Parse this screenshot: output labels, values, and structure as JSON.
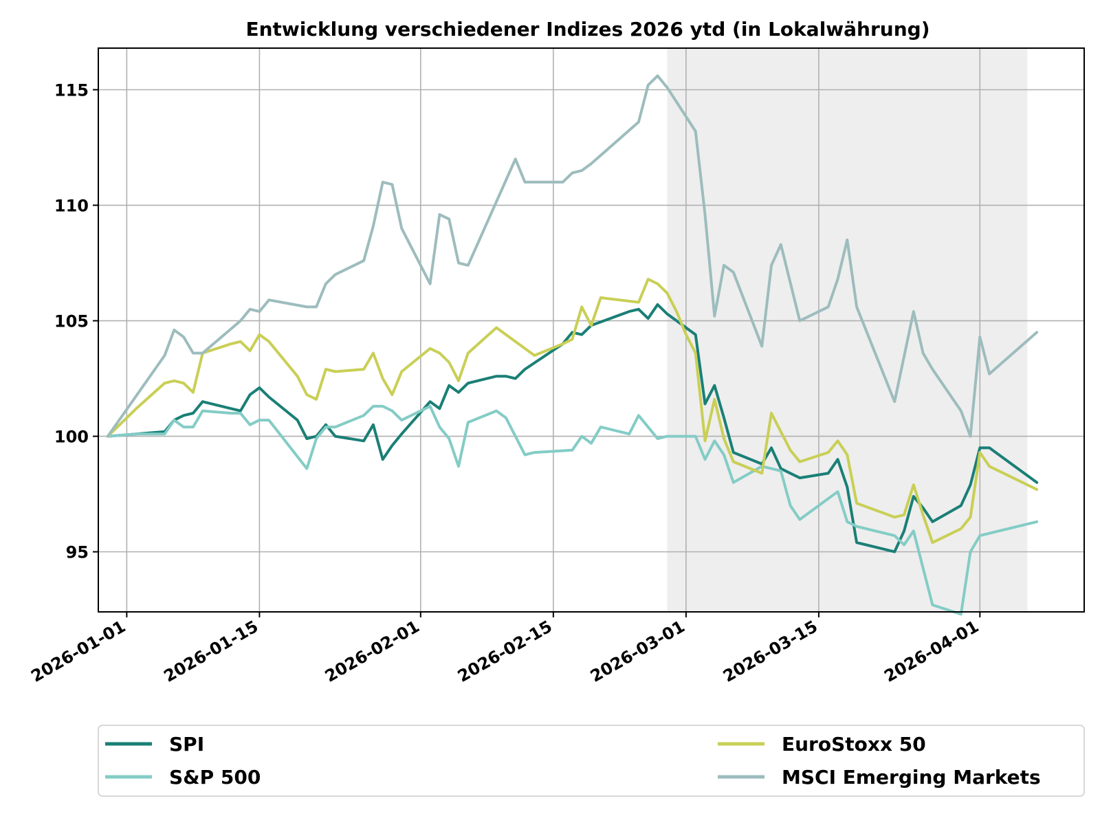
{
  "chart_data": {
    "type": "line",
    "title": "Entwicklung verschiedener Indizes 2026 ytd (in Lokalwährung)",
    "xlabel": "",
    "ylabel": "",
    "x_start": "2025-12-30",
    "xlim": [
      "2025-12-29",
      "2026-04-12"
    ],
    "ylim": [
      92.4,
      116.8
    ],
    "yticks": [
      95,
      100,
      105,
      110,
      115
    ],
    "ytick_labels": [
      "95",
      "100",
      "105",
      "110",
      "115"
    ],
    "xticks": [
      "2026-01-01",
      "2026-01-15",
      "2026-02-01",
      "2026-02-15",
      "2026-03-01",
      "2026-03-15",
      "2026-04-01"
    ],
    "xtick_labels": [
      "2026-01-01",
      "2026-01-15",
      "2026-02-01",
      "2026-02-15",
      "2026-03-01",
      "2026-03-15",
      "2026-04-01"
    ],
    "grid": true,
    "legend_placement": "below",
    "shaded_region": {
      "x_start": "2026-02-27",
      "x_end": "2026-04-06",
      "color": "#eeeeee"
    },
    "series": [
      {
        "name": "SPI",
        "color": "#1a7f76",
        "points": [
          [
            "2025-12-30",
            100.0
          ],
          [
            "2026-01-02",
            100.1
          ],
          [
            "2026-01-05",
            100.2
          ],
          [
            "2026-01-06",
            100.7
          ],
          [
            "2026-01-07",
            100.9
          ],
          [
            "2026-01-08",
            101.0
          ],
          [
            "2026-01-09",
            101.5
          ],
          [
            "2026-01-12",
            101.2
          ],
          [
            "2026-01-13",
            101.1
          ],
          [
            "2026-01-14",
            101.8
          ],
          [
            "2026-01-15",
            102.1
          ],
          [
            "2026-01-16",
            101.7
          ],
          [
            "2026-01-19",
            100.7
          ],
          [
            "2026-01-20",
            99.9
          ],
          [
            "2026-01-21",
            100.0
          ],
          [
            "2026-01-22",
            100.5
          ],
          [
            "2026-01-23",
            100.0
          ],
          [
            "2026-01-26",
            99.8
          ],
          [
            "2026-01-27",
            100.5
          ],
          [
            "2026-01-28",
            99.0
          ],
          [
            "2026-01-29",
            99.6
          ],
          [
            "2026-01-30",
            100.1
          ],
          [
            "2026-02-02",
            101.5
          ],
          [
            "2026-02-03",
            101.2
          ],
          [
            "2026-02-04",
            102.2
          ],
          [
            "2026-02-05",
            101.9
          ],
          [
            "2026-02-06",
            102.3
          ],
          [
            "2026-02-09",
            102.6
          ],
          [
            "2026-02-10",
            102.6
          ],
          [
            "2026-02-11",
            102.5
          ],
          [
            "2026-02-12",
            102.9
          ],
          [
            "2026-02-16",
            104.0
          ],
          [
            "2026-02-17",
            104.5
          ],
          [
            "2026-02-18",
            104.4
          ],
          [
            "2026-02-19",
            104.8
          ],
          [
            "2026-02-23",
            105.4
          ],
          [
            "2026-02-24",
            105.5
          ],
          [
            "2026-02-25",
            105.1
          ],
          [
            "2026-02-26",
            105.7
          ],
          [
            "2026-02-27",
            105.3
          ],
          [
            "2026-03-02",
            104.4
          ],
          [
            "2026-03-03",
            101.4
          ],
          [
            "2026-03-04",
            102.2
          ],
          [
            "2026-03-05",
            100.8
          ],
          [
            "2026-03-06",
            99.3
          ],
          [
            "2026-03-09",
            98.8
          ],
          [
            "2026-03-10",
            99.5
          ],
          [
            "2026-03-11",
            98.6
          ],
          [
            "2026-03-12",
            98.4
          ],
          [
            "2026-03-13",
            98.2
          ],
          [
            "2026-03-16",
            98.4
          ],
          [
            "2026-03-17",
            99.0
          ],
          [
            "2026-03-18",
            97.8
          ],
          [
            "2026-03-19",
            95.4
          ],
          [
            "2026-03-20",
            95.3
          ],
          [
            "2026-03-23",
            95.0
          ],
          [
            "2026-03-24",
            95.9
          ],
          [
            "2026-03-25",
            97.4
          ],
          [
            "2026-03-26",
            96.9
          ],
          [
            "2026-03-27",
            96.3
          ],
          [
            "2026-03-30",
            97.0
          ],
          [
            "2026-03-31",
            97.9
          ],
          [
            "2026-04-01",
            99.5
          ],
          [
            "2026-04-02",
            99.5
          ],
          [
            "2026-04-07",
            98.0
          ]
        ]
      },
      {
        "name": "S&P 500",
        "color": "#84ccc6",
        "points": [
          [
            "2025-12-30",
            100.0
          ],
          [
            "2026-01-02",
            100.1
          ],
          [
            "2026-01-05",
            100.1
          ],
          [
            "2026-01-06",
            100.7
          ],
          [
            "2026-01-07",
            100.4
          ],
          [
            "2026-01-08",
            100.4
          ],
          [
            "2026-01-09",
            101.1
          ],
          [
            "2026-01-12",
            101.0
          ],
          [
            "2026-01-13",
            101.0
          ],
          [
            "2026-01-14",
            100.5
          ],
          [
            "2026-01-15",
            100.7
          ],
          [
            "2026-01-16",
            100.7
          ],
          [
            "2026-01-20",
            98.6
          ],
          [
            "2026-01-21",
            99.9
          ],
          [
            "2026-01-22",
            100.4
          ],
          [
            "2026-01-23",
            100.4
          ],
          [
            "2026-01-26",
            100.9
          ],
          [
            "2026-01-27",
            101.3
          ],
          [
            "2026-01-28",
            101.3
          ],
          [
            "2026-01-29",
            101.1
          ],
          [
            "2026-01-30",
            100.7
          ],
          [
            "2026-02-02",
            101.3
          ],
          [
            "2026-02-03",
            100.4
          ],
          [
            "2026-02-04",
            99.9
          ],
          [
            "2026-02-05",
            98.7
          ],
          [
            "2026-02-06",
            100.6
          ],
          [
            "2026-02-09",
            101.1
          ],
          [
            "2026-02-10",
            100.8
          ],
          [
            "2026-02-11",
            100.0
          ],
          [
            "2026-02-12",
            99.2
          ],
          [
            "2026-02-13",
            99.3
          ],
          [
            "2026-02-17",
            99.4
          ],
          [
            "2026-02-18",
            100.0
          ],
          [
            "2026-02-19",
            99.7
          ],
          [
            "2026-02-20",
            100.4
          ],
          [
            "2026-02-23",
            100.1
          ],
          [
            "2026-02-24",
            100.9
          ],
          [
            "2026-02-25",
            100.4
          ],
          [
            "2026-02-26",
            99.9
          ],
          [
            "2026-02-27",
            100.0
          ],
          [
            "2026-03-02",
            100.0
          ],
          [
            "2026-03-03",
            99.0
          ],
          [
            "2026-03-04",
            99.8
          ],
          [
            "2026-03-05",
            99.2
          ],
          [
            "2026-03-06",
            98.0
          ],
          [
            "2026-03-09",
            98.7
          ],
          [
            "2026-03-10",
            98.6
          ],
          [
            "2026-03-11",
            98.5
          ],
          [
            "2026-03-12",
            97.0
          ],
          [
            "2026-03-13",
            96.4
          ],
          [
            "2026-03-16",
            97.3
          ],
          [
            "2026-03-17",
            97.6
          ],
          [
            "2026-03-18",
            96.3
          ],
          [
            "2026-03-19",
            96.1
          ],
          [
            "2026-03-23",
            95.7
          ],
          [
            "2026-03-24",
            95.3
          ],
          [
            "2026-03-25",
            95.9
          ],
          [
            "2026-03-26",
            94.3
          ],
          [
            "2026-03-27",
            92.7
          ],
          [
            "2026-03-30",
            92.3
          ],
          [
            "2026-03-31",
            95.0
          ],
          [
            "2026-04-01",
            95.7
          ],
          [
            "2026-04-07",
            96.3
          ]
        ]
      },
      {
        "name": "EuroStoxx 50",
        "color": "#c9cf55",
        "points": [
          [
            "2025-12-30",
            100.0
          ],
          [
            "2026-01-02",
            101.2
          ],
          [
            "2026-01-05",
            102.3
          ],
          [
            "2026-01-06",
            102.4
          ],
          [
            "2026-01-07",
            102.3
          ],
          [
            "2026-01-08",
            101.9
          ],
          [
            "2026-01-09",
            103.6
          ],
          [
            "2026-01-12",
            104.0
          ],
          [
            "2026-01-13",
            104.1
          ],
          [
            "2026-01-14",
            103.7
          ],
          [
            "2026-01-15",
            104.4
          ],
          [
            "2026-01-16",
            104.1
          ],
          [
            "2026-01-19",
            102.6
          ],
          [
            "2026-01-20",
            101.8
          ],
          [
            "2026-01-21",
            101.6
          ],
          [
            "2026-01-22",
            102.9
          ],
          [
            "2026-01-23",
            102.8
          ],
          [
            "2026-01-26",
            102.9
          ],
          [
            "2026-01-27",
            103.6
          ],
          [
            "2026-01-28",
            102.5
          ],
          [
            "2026-01-29",
            101.8
          ],
          [
            "2026-01-30",
            102.8
          ],
          [
            "2026-02-02",
            103.8
          ],
          [
            "2026-02-03",
            103.6
          ],
          [
            "2026-02-04",
            103.2
          ],
          [
            "2026-02-05",
            102.4
          ],
          [
            "2026-02-06",
            103.6
          ],
          [
            "2026-02-09",
            104.7
          ],
          [
            "2026-02-10",
            104.4
          ],
          [
            "2026-02-13",
            103.5
          ],
          [
            "2026-02-16",
            104.0
          ],
          [
            "2026-02-17",
            104.2
          ],
          [
            "2026-02-18",
            105.6
          ],
          [
            "2026-02-19",
            104.8
          ],
          [
            "2026-02-20",
            106.0
          ],
          [
            "2026-02-24",
            105.8
          ],
          [
            "2026-02-25",
            106.8
          ],
          [
            "2026-02-26",
            106.6
          ],
          [
            "2026-02-27",
            106.2
          ],
          [
            "2026-02-28",
            105.4
          ],
          [
            "2026-03-01",
            104.4
          ],
          [
            "2026-03-02",
            103.6
          ],
          [
            "2026-03-03",
            99.8
          ],
          [
            "2026-03-04",
            101.6
          ],
          [
            "2026-03-05",
            99.9
          ],
          [
            "2026-03-06",
            98.9
          ],
          [
            "2026-03-09",
            98.4
          ],
          [
            "2026-03-10",
            101.0
          ],
          [
            "2026-03-11",
            100.2
          ],
          [
            "2026-03-12",
            99.4
          ],
          [
            "2026-03-13",
            98.9
          ],
          [
            "2026-03-16",
            99.3
          ],
          [
            "2026-03-17",
            99.8
          ],
          [
            "2026-03-18",
            99.2
          ],
          [
            "2026-03-19",
            97.1
          ],
          [
            "2026-03-23",
            96.5
          ],
          [
            "2026-03-24",
            96.6
          ],
          [
            "2026-03-25",
            97.9
          ],
          [
            "2026-03-26",
            96.6
          ],
          [
            "2026-03-27",
            95.4
          ],
          [
            "2026-03-30",
            96.0
          ],
          [
            "2026-03-31",
            96.5
          ],
          [
            "2026-04-01",
            99.3
          ],
          [
            "2026-04-02",
            98.7
          ],
          [
            "2026-04-07",
            97.7
          ]
        ]
      },
      {
        "name": "MSCI Emerging Markets",
        "color": "#9dbcbd",
        "points": [
          [
            "2025-12-30",
            100.0
          ],
          [
            "2026-01-05",
            103.5
          ],
          [
            "2026-01-06",
            104.6
          ],
          [
            "2026-01-07",
            104.3
          ],
          [
            "2026-01-08",
            103.6
          ],
          [
            "2026-01-09",
            103.6
          ],
          [
            "2026-01-13",
            105.0
          ],
          [
            "2026-01-14",
            105.5
          ],
          [
            "2026-01-15",
            105.4
          ],
          [
            "2026-01-16",
            105.9
          ],
          [
            "2026-01-20",
            105.6
          ],
          [
            "2026-01-21",
            105.6
          ],
          [
            "2026-01-22",
            106.6
          ],
          [
            "2026-01-23",
            107.0
          ],
          [
            "2026-01-26",
            107.6
          ],
          [
            "2026-01-27",
            109.1
          ],
          [
            "2026-01-28",
            111.0
          ],
          [
            "2026-01-29",
            110.9
          ],
          [
            "2026-01-30",
            109.0
          ],
          [
            "2026-02-02",
            106.6
          ],
          [
            "2026-02-03",
            109.6
          ],
          [
            "2026-02-04",
            109.4
          ],
          [
            "2026-02-05",
            107.5
          ],
          [
            "2026-02-06",
            107.4
          ],
          [
            "2026-02-11",
            112.0
          ],
          [
            "2026-02-12",
            111.0
          ],
          [
            "2026-02-16",
            111.0
          ],
          [
            "2026-02-17",
            111.4
          ],
          [
            "2026-02-18",
            111.5
          ],
          [
            "2026-02-19",
            111.8
          ],
          [
            "2026-02-24",
            113.6
          ],
          [
            "2026-02-25",
            115.2
          ],
          [
            "2026-02-26",
            115.6
          ],
          [
            "2026-02-27",
            115.1
          ],
          [
            "2026-03-02",
            113.2
          ],
          [
            "2026-03-03",
            109.6
          ],
          [
            "2026-03-04",
            105.2
          ],
          [
            "2026-03-05",
            107.4
          ],
          [
            "2026-03-06",
            107.1
          ],
          [
            "2026-03-09",
            103.9
          ],
          [
            "2026-03-10",
            107.4
          ],
          [
            "2026-03-11",
            108.3
          ],
          [
            "2026-03-13",
            105.0
          ],
          [
            "2026-03-16",
            105.6
          ],
          [
            "2026-03-17",
            106.8
          ],
          [
            "2026-03-18",
            108.5
          ],
          [
            "2026-03-19",
            105.6
          ],
          [
            "2026-03-23",
            101.5
          ],
          [
            "2026-03-25",
            105.4
          ],
          [
            "2026-03-26",
            103.6
          ],
          [
            "2026-03-27",
            102.9
          ],
          [
            "2026-03-30",
            101.1
          ],
          [
            "2026-03-31",
            100.0
          ],
          [
            "2026-04-01",
            104.3
          ],
          [
            "2026-04-02",
            102.7
          ],
          [
            "2026-04-07",
            104.5
          ]
        ]
      }
    ]
  }
}
